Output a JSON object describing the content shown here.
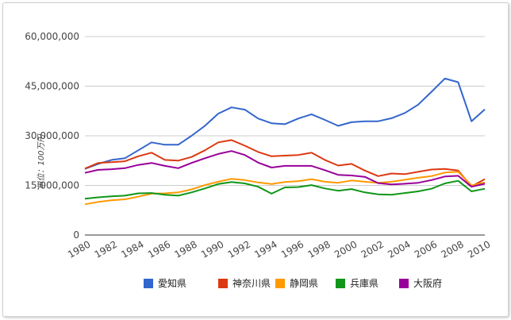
{
  "chart_data": {
    "type": "line",
    "ylabel": "単位：100万円",
    "ylim": [
      0,
      60000000
    ],
    "y_ticks": [
      0,
      15000000,
      30000000,
      45000000,
      60000000
    ],
    "y_tick_labels": [
      "0",
      "15,000,000",
      "30,000,000",
      "45,000,000",
      "60,000,000"
    ],
    "x": [
      1980,
      1981,
      1982,
      1983,
      1984,
      1985,
      1986,
      1987,
      1988,
      1989,
      1990,
      1991,
      1992,
      1993,
      1994,
      1995,
      1996,
      1997,
      1998,
      1999,
      2000,
      2001,
      2002,
      2003,
      2004,
      2005,
      2006,
      2007,
      2008,
      2009,
      2010
    ],
    "x_tick_labels": [
      "1980",
      "1982",
      "1984",
      "1986",
      "1988",
      "1990",
      "1992",
      "1994",
      "1996",
      "1998",
      "2000",
      "2002",
      "2004",
      "2006",
      "2008",
      "2010"
    ],
    "grid": true,
    "legend_position": "bottom",
    "series": [
      {
        "name": "愛知県",
        "color": "#3366cc",
        "values": [
          20000000,
          21500000,
          22700000,
          23200000,
          25600000,
          28000000,
          27300000,
          27300000,
          30000000,
          33000000,
          36700000,
          38600000,
          37900000,
          35200000,
          33800000,
          33500000,
          35200000,
          36500000,
          34800000,
          33000000,
          34100000,
          34400000,
          34400000,
          35300000,
          36900000,
          39400000,
          43300000,
          47300000,
          46200000,
          34400000,
          38000000
        ]
      },
      {
        "name": "神奈川県",
        "color": "#dc3912",
        "values": [
          20100000,
          21800000,
          22000000,
          22300000,
          23800000,
          24900000,
          22700000,
          22500000,
          23600000,
          25600000,
          28000000,
          28700000,
          27000000,
          25100000,
          23800000,
          24000000,
          24200000,
          24900000,
          22700000,
          21000000,
          21500000,
          19500000,
          17800000,
          18600000,
          18400000,
          19100000,
          19800000,
          20000000,
          19500000,
          14700000,
          16900000
        ]
      },
      {
        "name": "静岡県",
        "color": "#ff9900",
        "values": [
          9300000,
          10000000,
          10500000,
          10800000,
          11600000,
          12500000,
          12600000,
          12900000,
          13800000,
          15100000,
          16100000,
          17000000,
          16600000,
          15900000,
          15400000,
          16000000,
          16300000,
          16900000,
          16100000,
          15800000,
          16500000,
          16100000,
          15800000,
          16100000,
          16700000,
          17300000,
          17800000,
          18900000,
          19100000,
          15000000,
          15900000
        ]
      },
      {
        "name": "兵庫県",
        "color": "#109618",
        "values": [
          11000000,
          11400000,
          11700000,
          11900000,
          12600000,
          12700000,
          12200000,
          11900000,
          12900000,
          14100000,
          15400000,
          16000000,
          15600000,
          14600000,
          12500000,
          14400000,
          14500000,
          15100000,
          14100000,
          13400000,
          13900000,
          12900000,
          12300000,
          12200000,
          12700000,
          13200000,
          14000000,
          15600000,
          16400000,
          13200000,
          14000000
        ]
      },
      {
        "name": "大阪府",
        "color": "#990099",
        "values": [
          18800000,
          19700000,
          19900000,
          20200000,
          21200000,
          21800000,
          20900000,
          20200000,
          21800000,
          23200000,
          24500000,
          25400000,
          24200000,
          21900000,
          20400000,
          20900000,
          20900000,
          20900000,
          19600000,
          18200000,
          18000000,
          17600000,
          15700000,
          15300000,
          15500000,
          15800000,
          16600000,
          17700000,
          17900000,
          14600000,
          15500000
        ]
      }
    ]
  }
}
